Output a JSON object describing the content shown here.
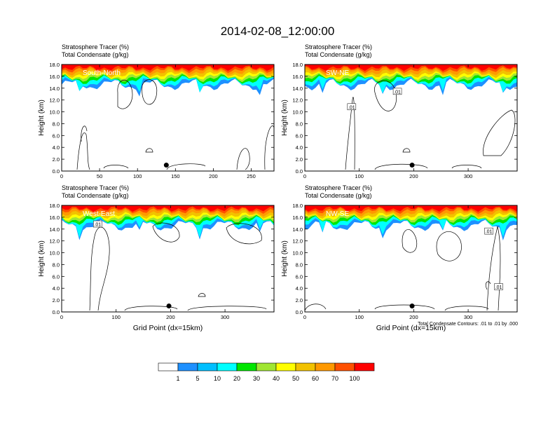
{
  "title": "2014-02-08_12:00:00",
  "footnote": "Total Condensate Contours: .01 to .01 by .000",
  "colorbar": {
    "labels": [
      "1",
      "5",
      "10",
      "20",
      "30",
      "40",
      "50",
      "60",
      "70",
      "100"
    ],
    "colors": [
      "#ffffff",
      "#1e90ff",
      "#00bfff",
      "#00ffff",
      "#00ff7f",
      "#00e600",
      "#a0e632",
      "#ffff00",
      "#f2c200",
      "#ff9900",
      "#ff5000",
      "#ff0000"
    ]
  },
  "chart_data": [
    {
      "type": "contour",
      "panel_label": "South-North",
      "line1": "Stratosphere Tracer   (%)",
      "line2": "Total Condensate   (g/kg)",
      "ylabel": "Height (km)",
      "xlabel": "",
      "xlim": [
        0,
        280
      ],
      "ylim": [
        0,
        18
      ],
      "xticks": [
        0,
        50,
        100,
        150,
        200,
        250
      ],
      "yticks": [
        "0.0",
        "2.0",
        "4.0",
        "6.0",
        "8.0",
        "10.0",
        "12.0",
        "14.0",
        "16.0",
        "18.0"
      ],
      "contour_labels": [],
      "marker": {
        "x": 138,
        "y": 1.0
      }
    },
    {
      "type": "contour",
      "panel_label": "SW-NE",
      "line1": "Stratosphere Tracer   (%)",
      "line2": "Total Condensate   (g/kg)",
      "ylabel": "Height (km)",
      "xlabel": "",
      "xlim": [
        0,
        390
      ],
      "ylim": [
        0,
        18
      ],
      "xticks": [
        0,
        100,
        200,
        300
      ],
      "yticks": [
        "0.0",
        "2.0",
        "4.0",
        "6.0",
        "8.0",
        "10.0",
        "12.0",
        "14.0",
        "16.0",
        "18.0"
      ],
      "contour_labels": [
        {
          "text": ".01",
          "x": 86,
          "y": 10.8
        },
        {
          "text": ".01",
          "x": 170,
          "y": 13.4
        }
      ],
      "marker": {
        "x": 197,
        "y": 1.0
      }
    },
    {
      "type": "contour",
      "panel_label": "West-East",
      "line1": "Stratosphere Tracer   (%)",
      "line2": "Total Condensate   (g/kg)",
      "ylabel": "Height (km)",
      "xlabel": "Grid Point (dx=15km)",
      "xlim": [
        0,
        390
      ],
      "ylim": [
        0,
        18
      ],
      "xticks": [
        0,
        100,
        200,
        300
      ],
      "yticks": [
        "0.0",
        "2.0",
        "4.0",
        "6.0",
        "8.0",
        "10.0",
        "12.0",
        "14.0",
        "16.0",
        "18.0"
      ],
      "contour_labels": [
        {
          "text": ".01",
          "x": 66,
          "y": 14.8
        }
      ],
      "marker": {
        "x": 197,
        "y": 1.0
      }
    },
    {
      "type": "contour",
      "panel_label": "NW-SE",
      "line1": "Stratosphere Tracer   (%)",
      "line2": "Total Condensate   (g/kg)",
      "ylabel": "Height (km)",
      "xlabel": "Grid Point (dx=15km)",
      "xlim": [
        0,
        390
      ],
      "ylim": [
        0,
        18
      ],
      "xticks": [
        0,
        100,
        200,
        300
      ],
      "yticks": [
        "0.0",
        "2.0",
        "4.0",
        "6.0",
        "8.0",
        "10.0",
        "12.0",
        "14.0",
        "16.0",
        "18.0"
      ],
      "contour_labels": [
        {
          "text": ".01",
          "x": 338,
          "y": 13.6
        },
        {
          "text": ".01",
          "x": 356,
          "y": 4.2
        }
      ],
      "marker": {
        "x": 197,
        "y": 1.0
      }
    }
  ]
}
